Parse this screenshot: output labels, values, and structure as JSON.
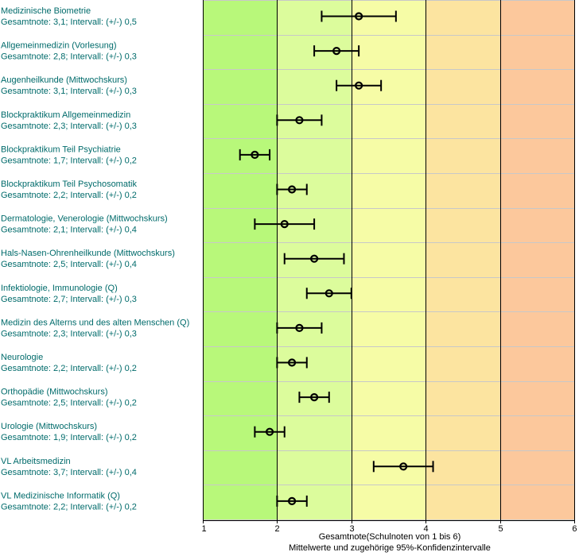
{
  "chart_data": {
    "type": "errorbar",
    "xlabel": "Gesamtnote(Schulnoten von 1 bis 6)",
    "xlabel_sub": "Mittelwerte und zugehörige 95%-Konfidenzintervalle",
    "xlim": [
      1,
      6
    ],
    "xticks": [
      "1",
      "2",
      "3",
      "4",
      "5",
      "6"
    ],
    "grid": "vertical lines at each grade, horizontal separators between courses",
    "bands": [
      {
        "from": 1,
        "to": 2,
        "color": "#b8f87a"
      },
      {
        "from": 2,
        "to": 3,
        "color": "#dcfc9c"
      },
      {
        "from": 3,
        "to": 4,
        "color": "#f6fca6"
      },
      {
        "from": 4,
        "to": 5,
        "color": "#fce4a0"
      },
      {
        "from": 5,
        "to": 6,
        "color": "#fcc89c"
      }
    ],
    "label_color": "#006b6b",
    "items": [
      {
        "name": "Medizinische Biometrie",
        "detail": "Gesamtnote: 3,1;  Intervall: (+/-) 0,5",
        "mean": 3.1,
        "ci": 0.5
      },
      {
        "name": "Allgemeinmedizin (Vorlesung)",
        "detail": "Gesamtnote: 2,8;  Intervall: (+/-) 0,3",
        "mean": 2.8,
        "ci": 0.3
      },
      {
        "name": "Augenheilkunde (Mittwochskurs)",
        "detail": "Gesamtnote: 3,1;  Intervall: (+/-) 0,3",
        "mean": 3.1,
        "ci": 0.3
      },
      {
        "name": "Blockpraktikum Allgemeinmedizin",
        "detail": "Gesamtnote: 2,3;  Intervall: (+/-) 0,3",
        "mean": 2.3,
        "ci": 0.3
      },
      {
        "name": "Blockpraktikum Teil Psychiatrie",
        "detail": "Gesamtnote: 1,7;  Intervall: (+/-) 0,2",
        "mean": 1.7,
        "ci": 0.2
      },
      {
        "name": "Blockpraktikum Teil Psychosomatik",
        "detail": "Gesamtnote: 2,2;  Intervall: (+/-) 0,2",
        "mean": 2.2,
        "ci": 0.2
      },
      {
        "name": "Dermatologie, Venerologie (Mittwochskurs)",
        "detail": "Gesamtnote: 2,1;  Intervall: (+/-) 0,4",
        "mean": 2.1,
        "ci": 0.4
      },
      {
        "name": "Hals-Nasen-Ohrenheilkunde (Mittwochskurs)",
        "detail": "Gesamtnote: 2,5; Intervall: (+/-) 0,4",
        "mean": 2.5,
        "ci": 0.4
      },
      {
        "name": "Infektiologie, Immunologie (Q)",
        "detail": "Gesamtnote: 2,7;  Intervall: (+/-) 0,3",
        "mean": 2.7,
        "ci": 0.3
      },
      {
        "name": "Medizin des Alterns und des alten Menschen (Q)",
        "detail": "Gesamtnote: 2,3;  Intervall: (+/-) 0,3",
        "mean": 2.3,
        "ci": 0.3
      },
      {
        "name": "Neurologie",
        "detail": "Gesamtnote: 2,2;  Intervall: (+/-) 0,2",
        "mean": 2.2,
        "ci": 0.2
      },
      {
        "name": "Orthopädie (Mittwochskurs)",
        "detail": "Gesamtnote: 2,5;  Intervall: (+/-) 0,2",
        "mean": 2.5,
        "ci": 0.2
      },
      {
        "name": "Urologie (Mittwochskurs)",
        "detail": "Gesamtnote: 1,9;  Intervall: (+/-) 0,2",
        "mean": 1.9,
        "ci": 0.2
      },
      {
        "name": "VL Arbeitsmedizin",
        "detail": "Gesamtnote: 3,7;  Intervall: (+/-) 0,4",
        "mean": 3.7,
        "ci": 0.4
      },
      {
        "name": "VL Medizinische Informatik (Q)",
        "detail": "Gesamtnote: 2,2;  Intervall: (+/-) 0,2",
        "mean": 2.2,
        "ci": 0.2
      }
    ]
  }
}
